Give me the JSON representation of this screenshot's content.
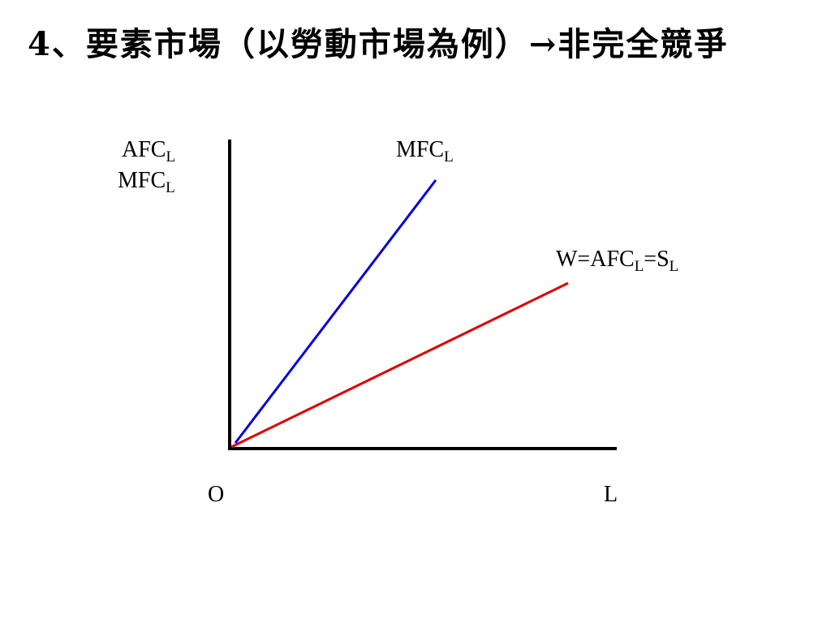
{
  "title": "4、要素市場（以勞動市場為例）→非完全競爭",
  "diagram": {
    "y_axis_label_1": {
      "main": "AFC",
      "sub": "L"
    },
    "y_axis_label_2": {
      "main": "MFC",
      "sub": "L"
    },
    "origin_label": "O",
    "x_axis_label": "L",
    "curves": [
      {
        "id": "mfc",
        "label_main": "MFC",
        "label_sub": "L",
        "color": "#0000dd"
      },
      {
        "id": "supply",
        "label_parts": [
          "W=AFC",
          "L",
          "=S",
          "L"
        ],
        "color": "#dd0000"
      }
    ],
    "axis_color": "#000000"
  }
}
